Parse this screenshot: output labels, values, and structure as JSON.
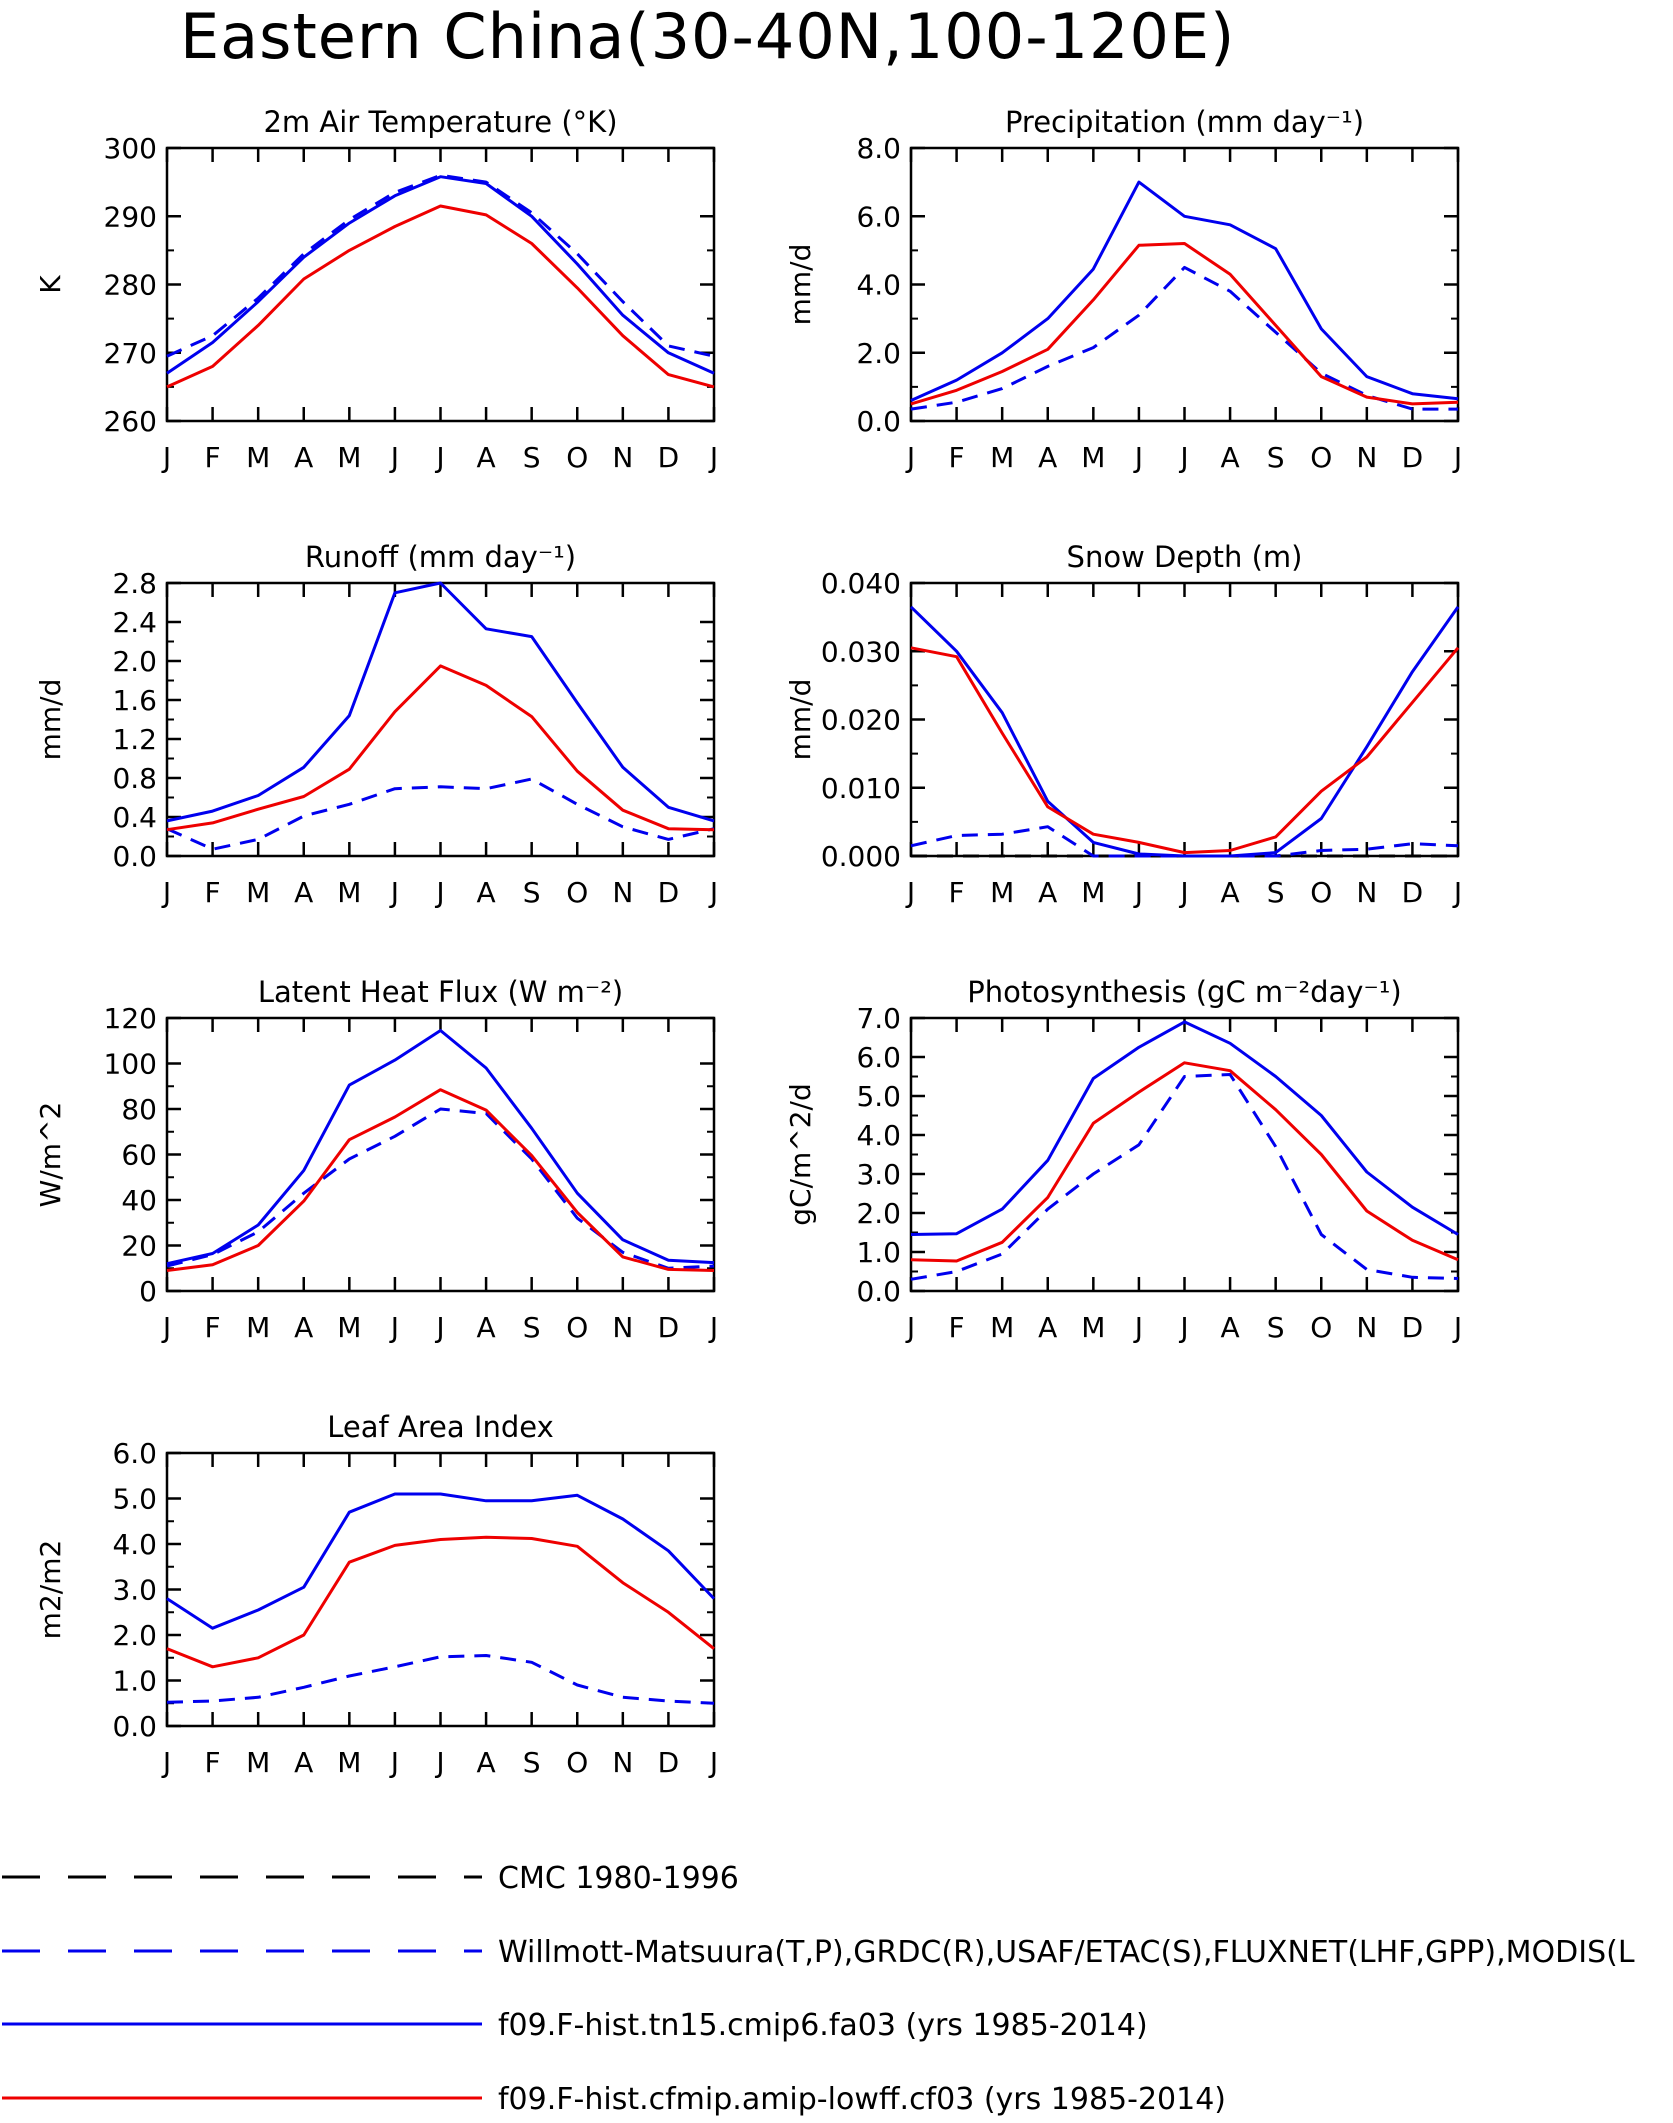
{
  "title": "Eastern China(30-40N,100-120E)",
  "months": [
    "J",
    "F",
    "M",
    "A",
    "M",
    "J",
    "J",
    "A",
    "S",
    "O",
    "N",
    "D",
    "J"
  ],
  "colors": {
    "obs_black": "#000000",
    "obs_blue": "#0000ee",
    "model_blue": "#0000ee",
    "model_red": "#ee0000"
  },
  "legend": [
    {
      "label": "CMC 1980-1996",
      "color": "#000000",
      "dash": true
    },
    {
      "label": "Willmott-Matsuura(T,P),GRDC(R),USAF/ETAC(S),FLUXNET(LHF,GPP),MODIS(L",
      "color": "#0000ee",
      "dash": true
    },
    {
      "label": "f09.F-hist.tn15.cmip6.fa03 (yrs 1985-2014)",
      "color": "#0000ee",
      "dash": false
    },
    {
      "label": "f09.F-hist.cfmip.amip-lowff.cf03 (yrs 1985-2014)",
      "color": "#ee0000",
      "dash": false
    }
  ],
  "chart_data": [
    {
      "type": "line",
      "title": "2m Air Temperature (°K)",
      "ylabel": "K",
      "ylim": [
        260,
        300
      ],
      "yticks": [
        "260",
        "270",
        "280",
        "290",
        "300"
      ],
      "x": [
        "J",
        "F",
        "M",
        "A",
        "M",
        "J",
        "J",
        "A",
        "S",
        "O",
        "N",
        "D",
        "J"
      ],
      "series": [
        {
          "legend_index": 1,
          "values": [
            269.5,
            272.5,
            278,
            284.5,
            289.5,
            293.5,
            296,
            295,
            290.5,
            284.5,
            277.5,
            271,
            269.5
          ]
        },
        {
          "legend_index": 2,
          "values": [
            267,
            271.5,
            277.5,
            284,
            289,
            293,
            295.8,
            294.8,
            290,
            283,
            275.5,
            270,
            267
          ]
        },
        {
          "legend_index": 3,
          "values": [
            265,
            268,
            274,
            280.8,
            285,
            288.5,
            291.5,
            290.2,
            286,
            279.5,
            272.5,
            266.8,
            265
          ]
        }
      ]
    },
    {
      "type": "line",
      "title": "Precipitation (mm day⁻¹)",
      "ylabel": "mm/d",
      "ylim": [
        0,
        8
      ],
      "yticks": [
        "0.0",
        "2.0",
        "4.0",
        "6.0",
        "8.0"
      ],
      "x": [
        "J",
        "F",
        "M",
        "A",
        "M",
        "J",
        "J",
        "A",
        "S",
        "O",
        "N",
        "D",
        "J"
      ],
      "series": [
        {
          "legend_index": 1,
          "values": [
            0.35,
            0.55,
            0.95,
            1.6,
            2.15,
            3.1,
            4.5,
            3.8,
            2.6,
            1.4,
            0.75,
            0.35,
            0.35
          ]
        },
        {
          "legend_index": 2,
          "values": [
            0.6,
            1.2,
            2.0,
            3.0,
            4.45,
            7.0,
            6.0,
            5.75,
            5.05,
            2.7,
            1.3,
            0.8,
            0.65
          ]
        },
        {
          "legend_index": 3,
          "values": [
            0.5,
            0.9,
            1.45,
            2.1,
            3.55,
            5.15,
            5.2,
            4.3,
            2.8,
            1.3,
            0.7,
            0.5,
            0.55
          ]
        }
      ]
    },
    {
      "type": "line",
      "title": "Runoff (mm day⁻¹)",
      "ylabel": "mm/d",
      "ylim": [
        0,
        2.8
      ],
      "yticks": [
        "0.0",
        "0.4",
        "0.8",
        "1.2",
        "1.6",
        "2.0",
        "2.4",
        "2.8"
      ],
      "x": [
        "J",
        "F",
        "M",
        "A",
        "M",
        "J",
        "J",
        "A",
        "S",
        "O",
        "N",
        "D",
        "J"
      ],
      "series": [
        {
          "legend_index": 1,
          "values": [
            0.28,
            0.07,
            0.17,
            0.41,
            0.53,
            0.69,
            0.71,
            0.69,
            0.79,
            0.53,
            0.3,
            0.17,
            0.28
          ]
        },
        {
          "legend_index": 2,
          "values": [
            0.36,
            0.46,
            0.62,
            0.91,
            1.44,
            2.7,
            2.8,
            2.33,
            2.25,
            1.57,
            0.91,
            0.5,
            0.36
          ]
        },
        {
          "legend_index": 3,
          "values": [
            0.27,
            0.34,
            0.48,
            0.61,
            0.89,
            1.48,
            1.95,
            1.75,
            1.43,
            0.87,
            0.47,
            0.28,
            0.27
          ]
        }
      ]
    },
    {
      "type": "line",
      "title": "Snow Depth (m)",
      "ylabel": "mm/d",
      "ylim": [
        0,
        0.04
      ],
      "yticks": [
        "0.000",
        "0.010",
        "0.020",
        "0.030",
        "0.040"
      ],
      "x": [
        "J",
        "F",
        "M",
        "A",
        "M",
        "J",
        "J",
        "A",
        "S",
        "O",
        "N",
        "D",
        "J"
      ],
      "series": [
        {
          "legend_index": 0,
          "values": [
            0,
            0,
            0,
            0,
            0,
            0,
            0,
            0,
            0,
            0,
            0,
            0,
            0
          ]
        },
        {
          "legend_index": 1,
          "values": [
            0.0015,
            0.003,
            0.0032,
            0.0043,
            0,
            0,
            0,
            0,
            0,
            0.0008,
            0.001,
            0.0018,
            0.0015
          ]
        },
        {
          "legend_index": 2,
          "values": [
            0.0365,
            0.03,
            0.021,
            0.008,
            0.002,
            0.0003,
            0,
            0,
            0.0005,
            0.0055,
            0.016,
            0.027,
            0.0365
          ]
        },
        {
          "legend_index": 3,
          "values": [
            0.0305,
            0.0292,
            0.018,
            0.0072,
            0.0032,
            0.002,
            0.0005,
            0.0008,
            0.0028,
            0.0095,
            0.0145,
            0.0225,
            0.0305
          ]
        }
      ]
    },
    {
      "type": "line",
      "title": "Latent Heat Flux (W m⁻²)",
      "ylabel": "W/m^2",
      "ylim": [
        0,
        120
      ],
      "yticks": [
        "0",
        "20",
        "40",
        "60",
        "80",
        "100",
        "120"
      ],
      "x": [
        "J",
        "F",
        "M",
        "A",
        "M",
        "J",
        "J",
        "A",
        "S",
        "O",
        "N",
        "D",
        "J"
      ],
      "series": [
        {
          "legend_index": 1,
          "values": [
            11,
            16,
            26,
            43,
            58,
            68,
            80,
            78,
            58,
            32,
            17,
            10,
            11
          ]
        },
        {
          "legend_index": 2,
          "values": [
            12,
            16.5,
            29,
            53,
            90.5,
            101.5,
            114.5,
            98,
            71.5,
            43,
            22.5,
            13.5,
            12.5
          ]
        },
        {
          "legend_index": 3,
          "values": [
            9,
            11.5,
            20,
            39.5,
            66.5,
            76.5,
            88.5,
            79.5,
            59.5,
            34.5,
            15,
            9.5,
            9
          ]
        }
      ]
    },
    {
      "type": "line",
      "title": "Photosynthesis (gC m⁻²day⁻¹)",
      "ylabel": "gC/m^2/d",
      "ylim": [
        0,
        7
      ],
      "yticks": [
        "0.0",
        "1.0",
        "2.0",
        "3.0",
        "4.0",
        "5.0",
        "6.0",
        "7.0"
      ],
      "x": [
        "J",
        "F",
        "M",
        "A",
        "M",
        "J",
        "J",
        "A",
        "S",
        "O",
        "N",
        "D",
        "J"
      ],
      "series": [
        {
          "legend_index": 1,
          "values": [
            0.3,
            0.5,
            0.95,
            2.1,
            3.0,
            3.75,
            5.5,
            5.55,
            3.7,
            1.45,
            0.55,
            0.35,
            0.32
          ]
        },
        {
          "legend_index": 2,
          "values": [
            1.45,
            1.47,
            2.1,
            3.35,
            5.45,
            6.25,
            6.9,
            6.35,
            5.5,
            4.5,
            3.05,
            2.15,
            1.45
          ]
        },
        {
          "legend_index": 3,
          "values": [
            0.8,
            0.77,
            1.25,
            2.4,
            4.3,
            5.1,
            5.85,
            5.65,
            4.65,
            3.5,
            2.05,
            1.3,
            0.8
          ]
        }
      ]
    },
    {
      "type": "line",
      "title": "Leaf Area Index",
      "ylabel": "m2/m2",
      "ylim": [
        0,
        6
      ],
      "yticks": [
        "0.0",
        "1.0",
        "2.0",
        "3.0",
        "4.0",
        "5.0",
        "6.0"
      ],
      "x": [
        "J",
        "F",
        "M",
        "A",
        "M",
        "J",
        "J",
        "A",
        "S",
        "O",
        "N",
        "D",
        "J"
      ],
      "series": [
        {
          "legend_index": 1,
          "values": [
            0.52,
            0.55,
            0.63,
            0.85,
            1.1,
            1.3,
            1.52,
            1.55,
            1.4,
            0.9,
            0.63,
            0.55,
            0.5
          ]
        },
        {
          "legend_index": 2,
          "values": [
            2.8,
            2.15,
            2.55,
            3.05,
            4.7,
            5.1,
            5.1,
            4.95,
            4.95,
            5.07,
            4.55,
            3.85,
            2.8
          ]
        },
        {
          "legend_index": 3,
          "values": [
            1.7,
            1.3,
            1.5,
            2.0,
            3.6,
            3.97,
            4.1,
            4.15,
            4.12,
            3.95,
            3.15,
            2.5,
            1.7
          ]
        }
      ]
    }
  ]
}
